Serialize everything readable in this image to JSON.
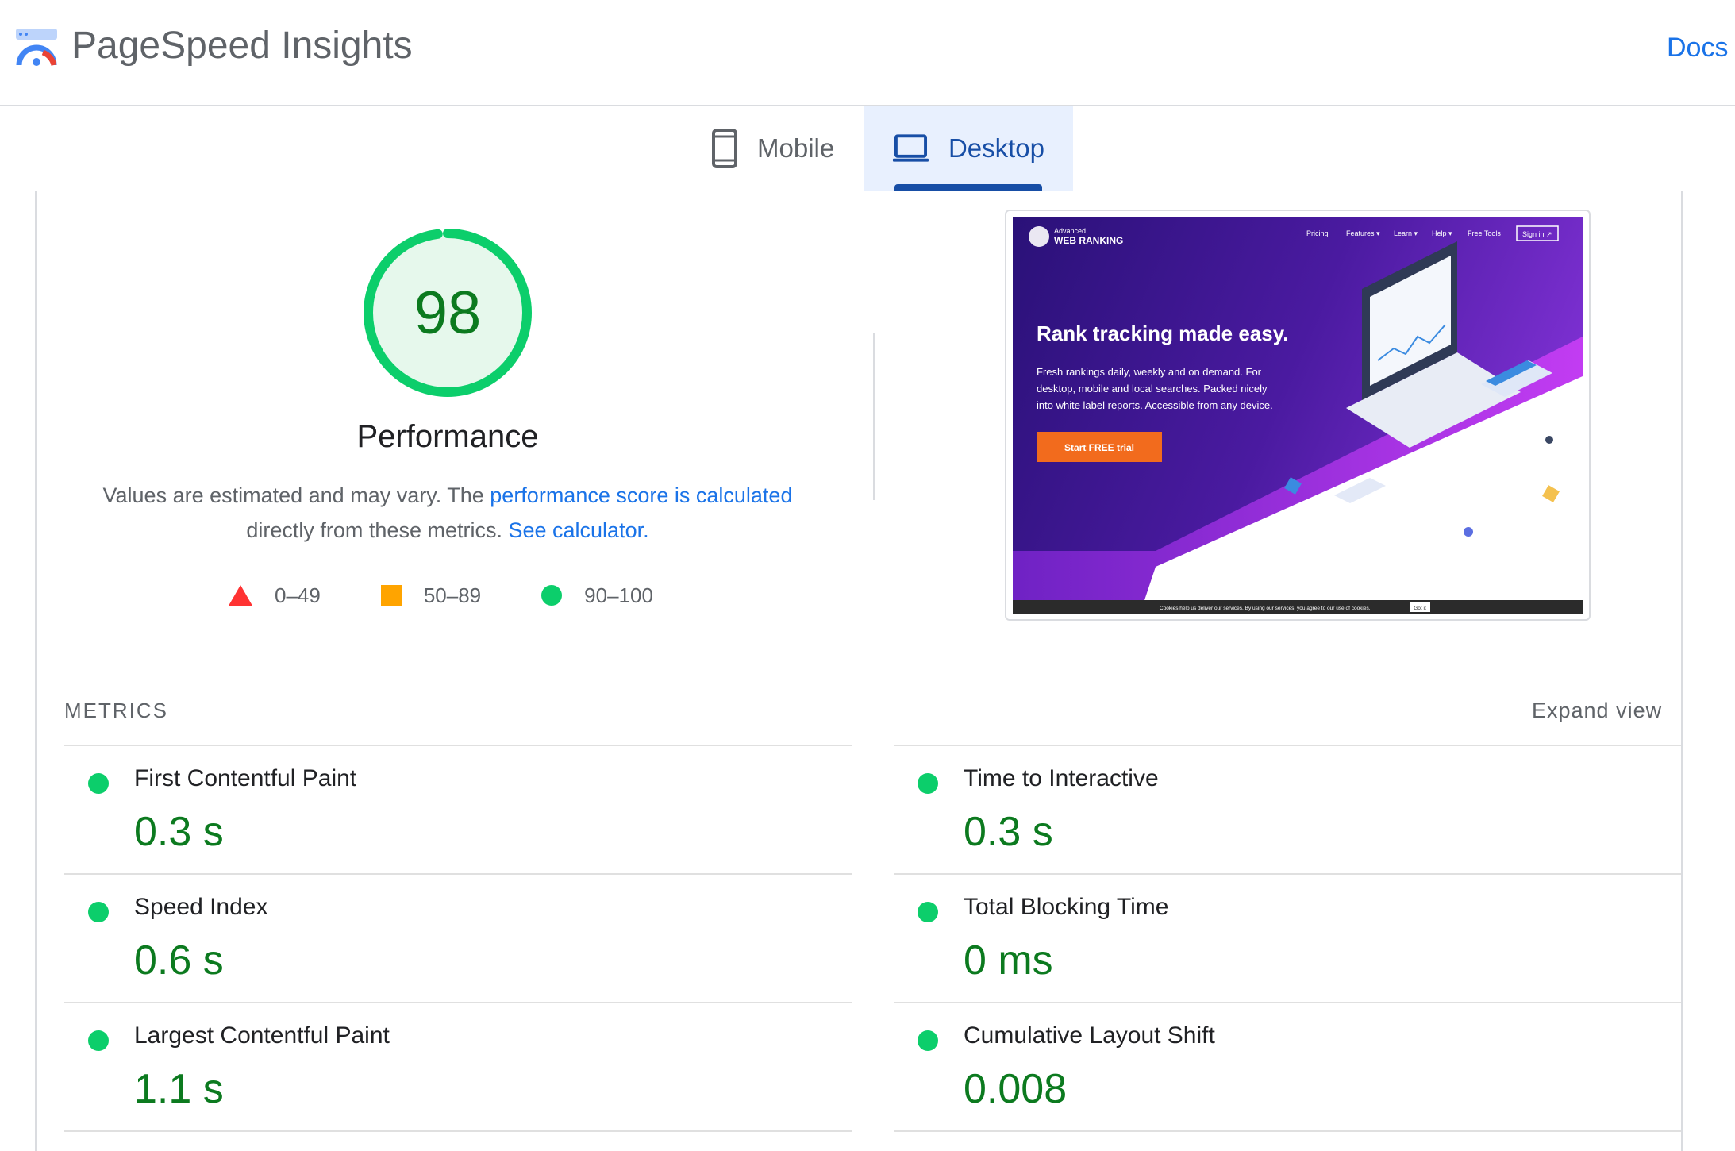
{
  "header": {
    "title": "PageSpeed Insights",
    "docs_link": "Docs",
    "logo_icon": "pagespeed-gauge-logo"
  },
  "tabs": [
    {
      "label": "Mobile",
      "icon": "smartphone-icon",
      "selected": false
    },
    {
      "label": "Desktop",
      "icon": "laptop-icon",
      "selected": true
    }
  ],
  "performance": {
    "score": "98",
    "score_fraction": 0.98,
    "label": "Performance",
    "desc_prefix": "Values are estimated and may vary. The",
    "desc_link1": "performance score is calculated",
    "desc_middle": "directly from these metrics.",
    "desc_link2": "See calculator."
  },
  "legend": [
    {
      "range": "0–49",
      "shape": "triangle",
      "color": "#ff3333"
    },
    {
      "range": "50–89",
      "shape": "square",
      "color": "#ffa400"
    },
    {
      "range": "90–100",
      "shape": "circle",
      "color": "#0cce6b"
    }
  ],
  "screenshot": {
    "brand_small": "Advanced",
    "brand_big": "WEB RANKING",
    "nav": [
      "Pricing",
      "Features ▾",
      "Learn ▾",
      "Help ▾",
      "Free Tools"
    ],
    "signin": "Sign in ↗",
    "headline": "Rank tracking made easy.",
    "sub1": "Fresh rankings daily, weekly and on demand. For",
    "sub2": "desktop, mobile and local searches. Packed nicely",
    "sub3": "into white label reports. Accessible from any device.",
    "cta": "Start FREE trial",
    "cookie": "Cookies help us deliver our services. By using our services, you agree to our use of cookies.",
    "cookie_btn": "Got it"
  },
  "metrics": {
    "title": "METRICS",
    "expand": "Expand view",
    "items": [
      {
        "label": "First Contentful Paint",
        "value": "0.3 s"
      },
      {
        "label": "Time to Interactive",
        "value": "0.3 s"
      },
      {
        "label": "Speed Index",
        "value": "0.6 s"
      },
      {
        "label": "Total Blocking Time",
        "value": "0 ms"
      },
      {
        "label": "Largest Contentful Paint",
        "value": "1.1 s"
      },
      {
        "label": "Cumulative Layout Shift",
        "value": "0.008"
      }
    ]
  },
  "colors": {
    "pass_green": "#0cce6b",
    "pass_text": "#0c7a1f",
    "link_blue": "#1a73e8",
    "tab_selected_bg": "#e8f0fe"
  }
}
